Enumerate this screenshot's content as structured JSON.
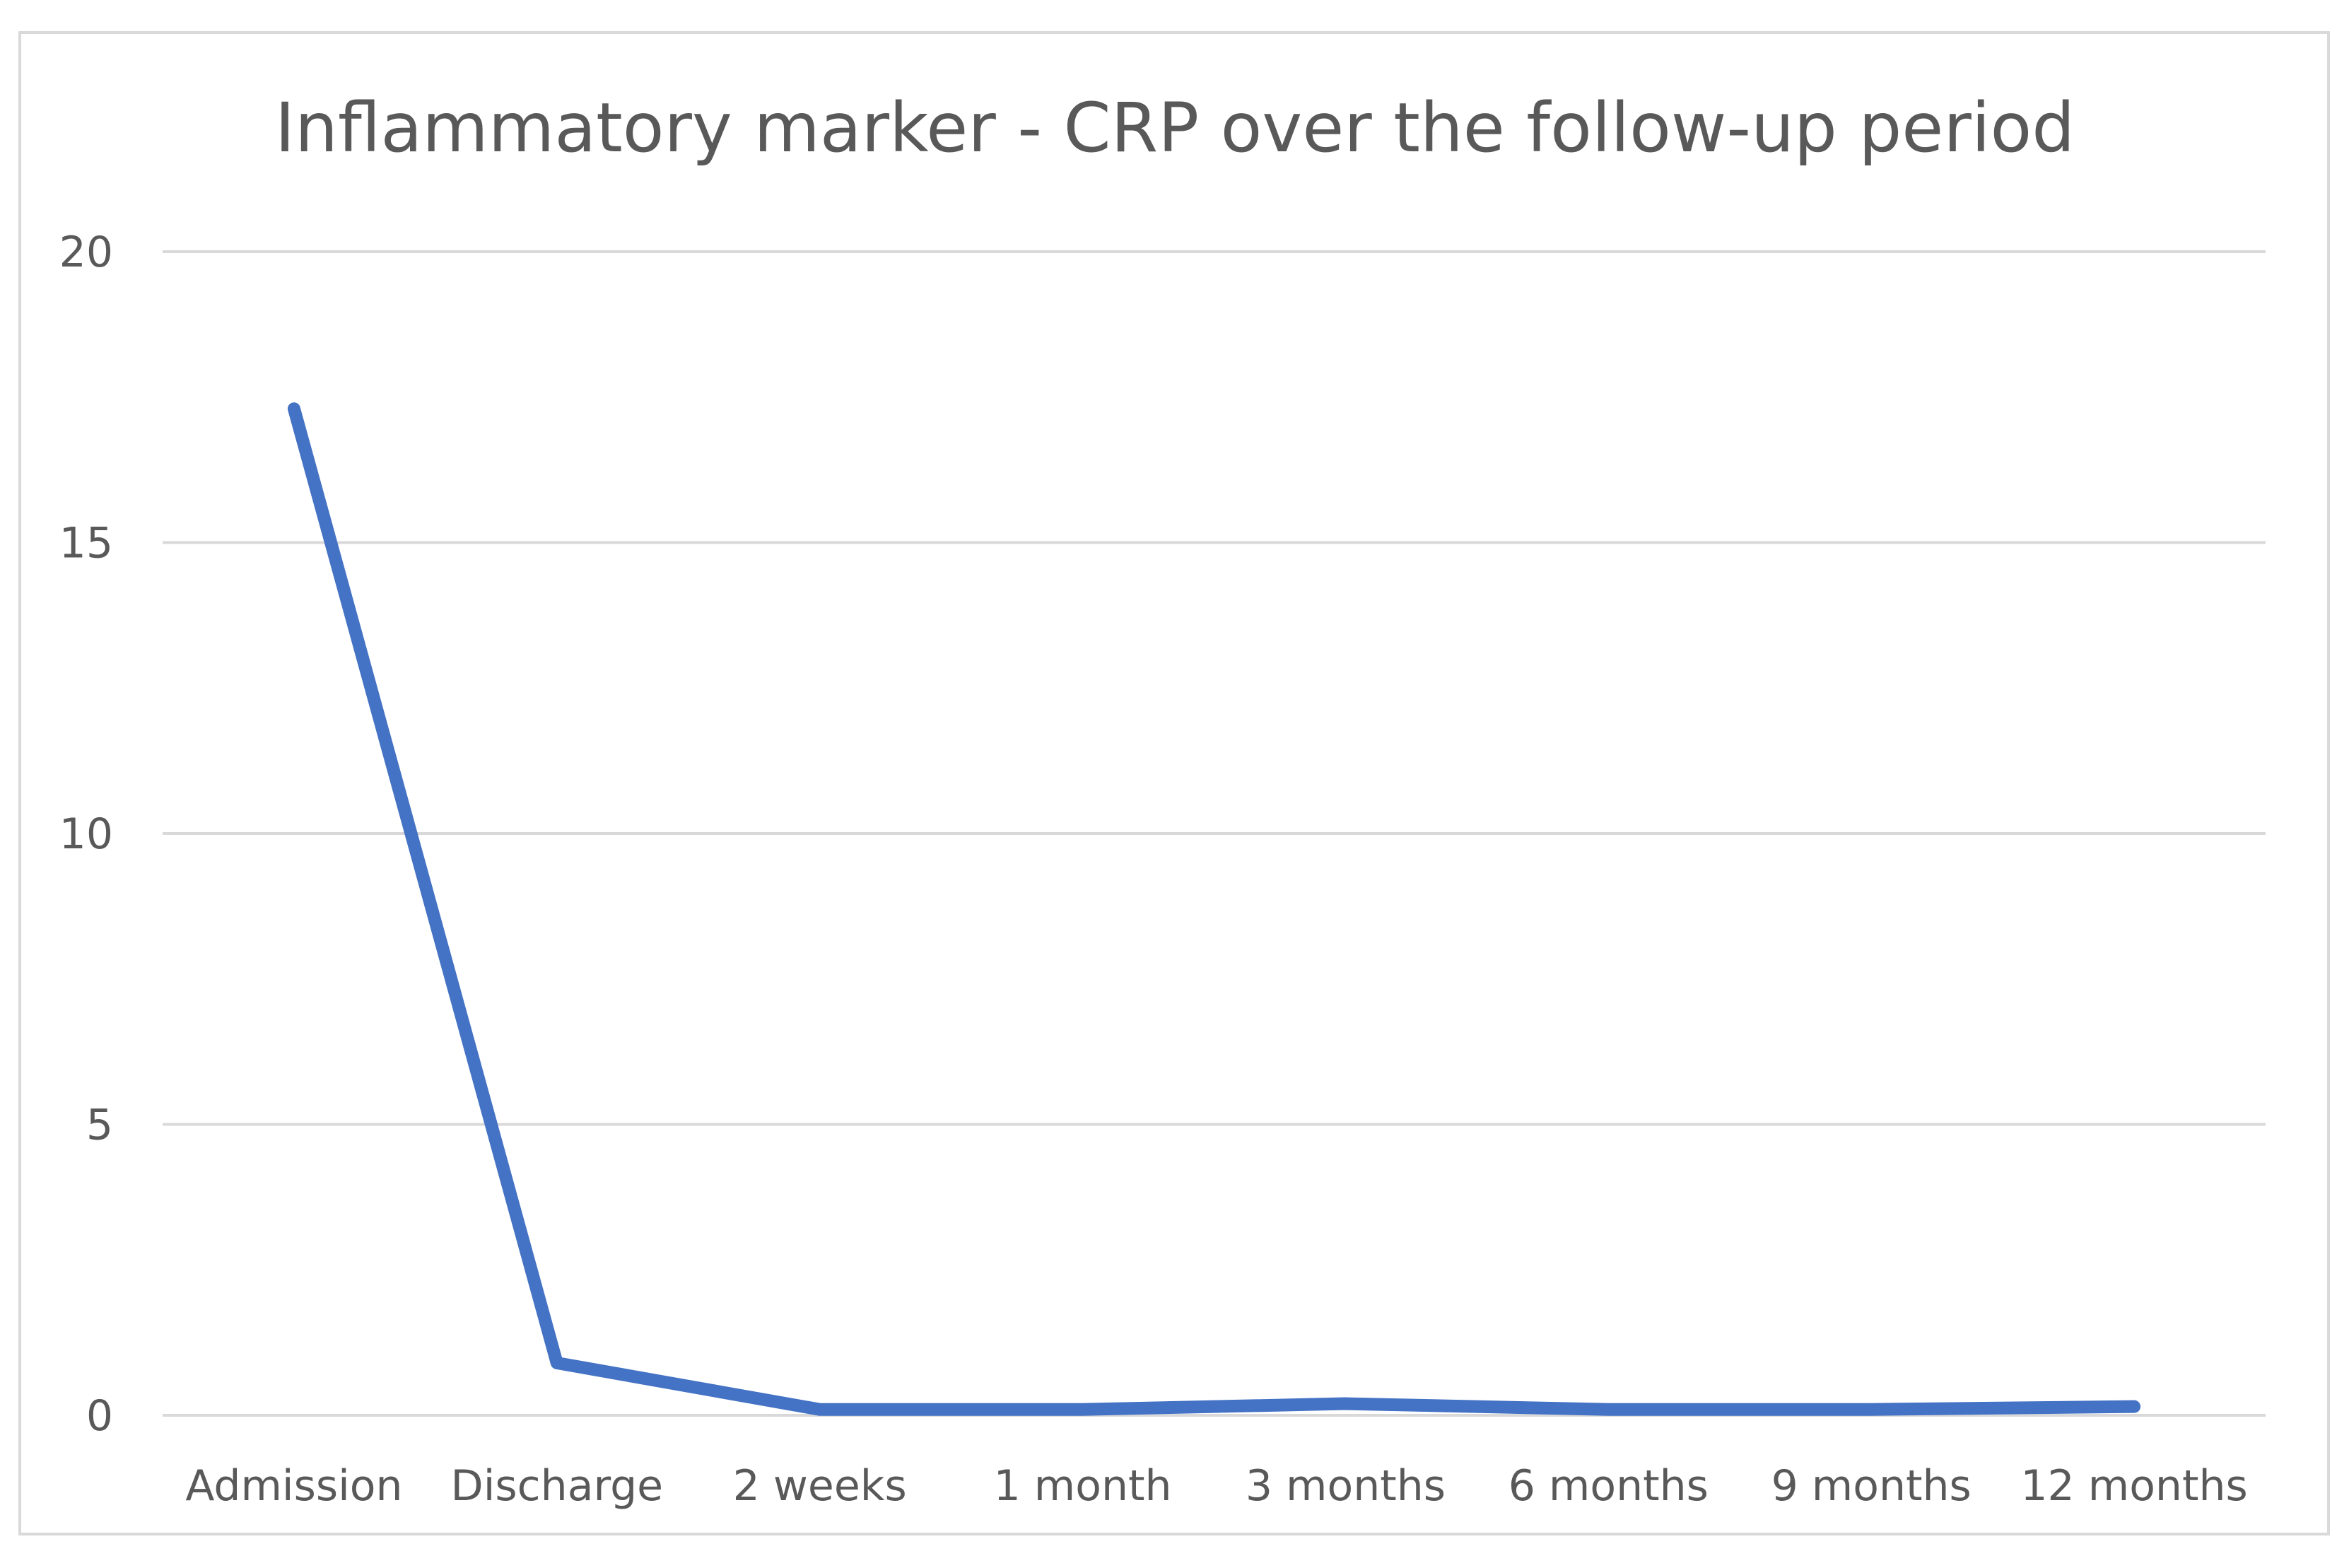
{
  "chart_data": {
    "type": "line",
    "title": "Inflammatory marker - CRP over the follow-up period",
    "xlabel": "",
    "ylabel": "",
    "categories": [
      "Admission",
      "Discharge",
      "2 weeks",
      "1 month",
      "3 months",
      "6 months",
      "9 months",
      "12 months"
    ],
    "series": [
      {
        "values": [
          17.3,
          0.9,
          0.1,
          0.1,
          0.2,
          0.1,
          0.1,
          0.15
        ]
      }
    ],
    "ylim": [
      0,
      20
    ],
    "yticks": [
      0,
      5,
      10,
      15,
      20
    ],
    "grid": true,
    "legend": "none",
    "colors": {
      "line": "#4472c4",
      "grid": "#d9d9d9",
      "text": "#595959",
      "frame": "#d9d9d9"
    }
  }
}
